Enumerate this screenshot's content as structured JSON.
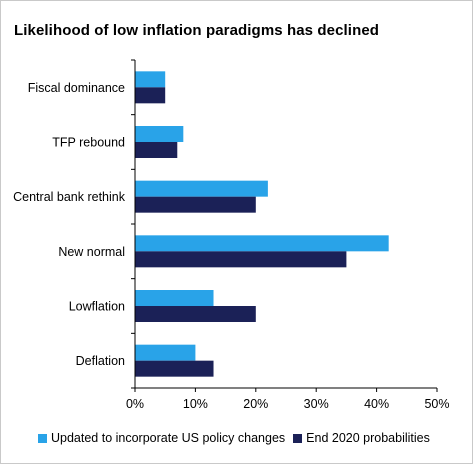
{
  "chart_data": {
    "type": "bar",
    "orientation": "horizontal",
    "title": "Likelihood of low inflation paradigms has declined",
    "categories": [
      "Fiscal dominance",
      "TFP rebound",
      "Central bank rethink",
      "New normal",
      "Lowflation",
      "Deflation"
    ],
    "series": [
      {
        "name": "Updated to incorporate US policy changes",
        "color": "#29a3e8",
        "values": [
          5,
          8,
          22,
          42,
          13,
          10
        ]
      },
      {
        "name": "End 2020 probabilities",
        "color": "#1b2157",
        "values": [
          5,
          7,
          20,
          35,
          20,
          13
        ]
      }
    ],
    "xlim": [
      0,
      50
    ],
    "xticks": [
      "0%",
      "10%",
      "20%",
      "30%",
      "40%",
      "50%"
    ],
    "grid": false,
    "legend_position": "bottom"
  }
}
